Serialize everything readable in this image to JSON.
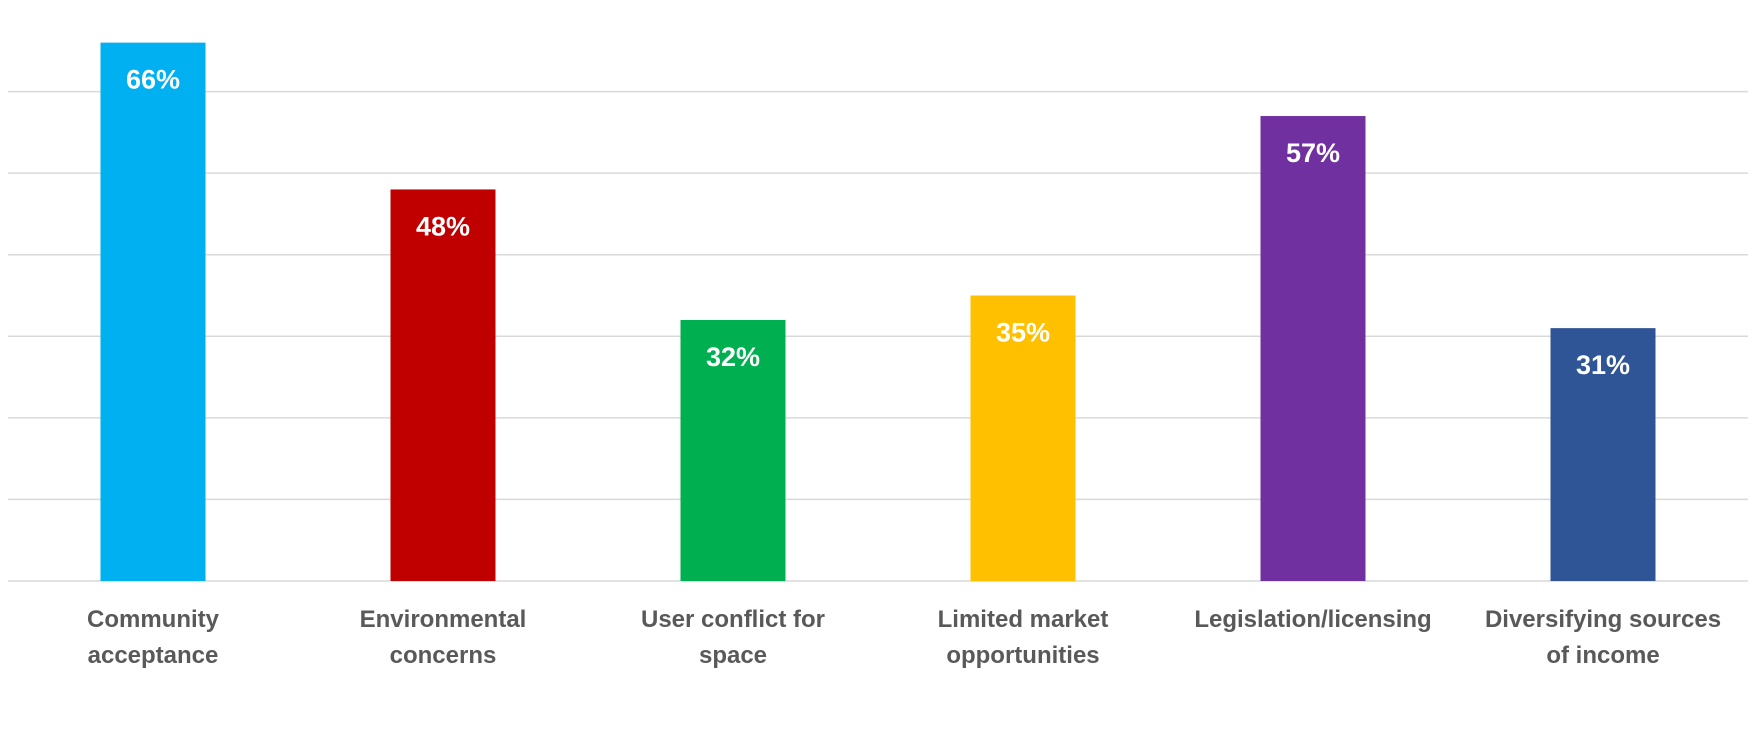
{
  "chart_data": {
    "type": "bar",
    "title": "",
    "xlabel": "",
    "ylabel": "",
    "categories": [
      [
        "Community",
        "acceptance"
      ],
      [
        "Environmental",
        "concerns"
      ],
      [
        "User conflict for",
        "space"
      ],
      [
        "Limited market",
        "opportunities"
      ],
      [
        "Legislation/licensing"
      ],
      [
        "Diversifying sources",
        "of income"
      ]
    ],
    "values": [
      66,
      48,
      32,
      35,
      57,
      31
    ],
    "value_labels": [
      "66%",
      "48%",
      "32%",
      "35%",
      "57%",
      "31%"
    ],
    "colors": [
      "#00b0f0",
      "#c00000",
      "#00b050",
      "#ffc000",
      "#7030a0",
      "#2f5597"
    ],
    "ylim": [
      0,
      70
    ],
    "ytick_step": 10,
    "y_axis_labels_visible": false,
    "grid": true,
    "legend": "none"
  }
}
